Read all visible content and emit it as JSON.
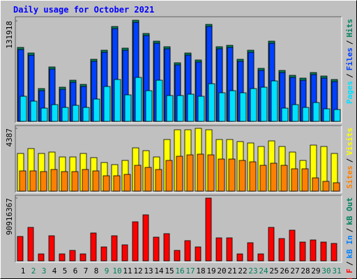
{
  "title": "Daily usage for October 2021",
  "legend_separator": "/",
  "chart_data": [
    {
      "type": "bar",
      "ylim": [
        0,
        131918
      ],
      "yticks": [
        131918
      ],
      "series": [
        {
          "name": "Hits",
          "color": "#00805c",
          "values": [
            96190,
            88862,
            42141,
            70540,
            43973,
            53134,
            47637,
            80617,
            92526,
            123674,
            95274,
            131918,
            114513,
            104435,
            97107,
            76036,
            88862,
            79701,
            126422,
            97107,
            98939,
            80617,
            92526,
            68708,
            104435,
            65959,
            59547,
            55882,
            63211,
            58630,
            54050
          ]
        },
        {
          "name": "Files",
          "color": "#0040ff",
          "values": [
            94300,
            86900,
            40300,
            68700,
            42100,
            51300,
            45800,
            78800,
            90700,
            121800,
            93400,
            130000,
            112700,
            102600,
            95300,
            74200,
            87000,
            77900,
            124600,
            95300,
            97100,
            78800,
            90700,
            66900,
            102600,
            64100,
            57700,
            54000,
            61400,
            56800,
            52200
          ]
        },
        {
          "name": "Pages",
          "color": "#00e0ff",
          "values": [
            32980,
            26567,
            17406,
            21986,
            18322,
            21070,
            18322,
            29315,
            45805,
            54966,
            34812,
            57714,
            40308,
            54050,
            33896,
            33896,
            35728,
            32980,
            49469,
            37560,
            40308,
            37560,
            43057,
            44889,
            53134,
            17406,
            21986,
            18322,
            24735,
            16490,
            15574
          ]
        }
      ]
    },
    {
      "type": "bar",
      "ylim": [
        0,
        4387
      ],
      "yticks": [
        4387
      ],
      "series": [
        {
          "name": "Visits",
          "color": "#ffff00",
          "values": [
            2632,
            2973,
            2632,
            2729,
            2388,
            2388,
            2632,
            2340,
            1998,
            1852,
            2145,
            3022,
            2827,
            2388,
            3607,
            4289,
            4289,
            4387,
            4289,
            3607,
            3607,
            3461,
            3363,
            3119,
            3509,
            3119,
            2729,
            2145,
            3217,
            3119,
            2632
          ]
        },
        {
          "name": "Sites",
          "color": "#ff8000",
          "values": [
            1413,
            1413,
            1365,
            1511,
            1365,
            1365,
            1511,
            1413,
            1072,
            1072,
            1170,
            1803,
            1657,
            1511,
            2145,
            2437,
            2534,
            2583,
            2534,
            2242,
            2242,
            2145,
            2047,
            1803,
            1950,
            1803,
            1560,
            1560,
            926,
            682,
            585
          ]
        }
      ]
    },
    {
      "type": "bar",
      "ylim": [
        0,
        90916367
      ],
      "yticks": [
        90916367
      ],
      "categories": [
        "1",
        "2",
        "3",
        "4",
        "5",
        "6",
        "7",
        "8",
        "9",
        "10",
        "11",
        "12",
        "13",
        "14",
        "15",
        "16",
        "17",
        "18",
        "19",
        "20",
        "21",
        "22",
        "23",
        "24",
        "25",
        "26",
        "27",
        "28",
        "29",
        "30",
        "31"
      ],
      "category_colors": [
        "#000000",
        "#00805c",
        "#00805c",
        "#000000",
        "#000000",
        "#000000",
        "#000000",
        "#000000",
        "#00805c",
        "#00805c",
        "#000000",
        "#000000",
        "#000000",
        "#000000",
        "#000000",
        "#00805c",
        "#00805c",
        "#000000",
        "#000000",
        "#000000",
        "#000000",
        "#000000",
        "#00805c",
        "#00805c",
        "#000000",
        "#000000",
        "#000000",
        "#000000",
        "#000000",
        "#00805c",
        "#00805c"
      ],
      "legend": [
        {
          "name": "kB F",
          "color": "#ff0000"
        },
        {
          "name": "kB In",
          "color": "#0080ff"
        },
        {
          "name": "kB Out",
          "color": "#00805c"
        }
      ],
      "series": [
        {
          "name": "kB F",
          "color": "#ff0000",
          "values": [
            35356370,
            48488736,
            10101820,
            36366552,
            10101820,
            15152730,
            10101820,
            40407280,
            20203640,
            36366552,
            23234186,
            56570192,
            66672012,
            34346188,
            39397098,
            15152730,
            29295278,
            20203640,
            90916367,
            33336006,
            33336006,
            10101820,
            26264732,
            10101820,
            48488736,
            32325824,
            44448008,
            27274914,
            30305460,
            27274914,
            25254550
          ]
        }
      ]
    }
  ]
}
